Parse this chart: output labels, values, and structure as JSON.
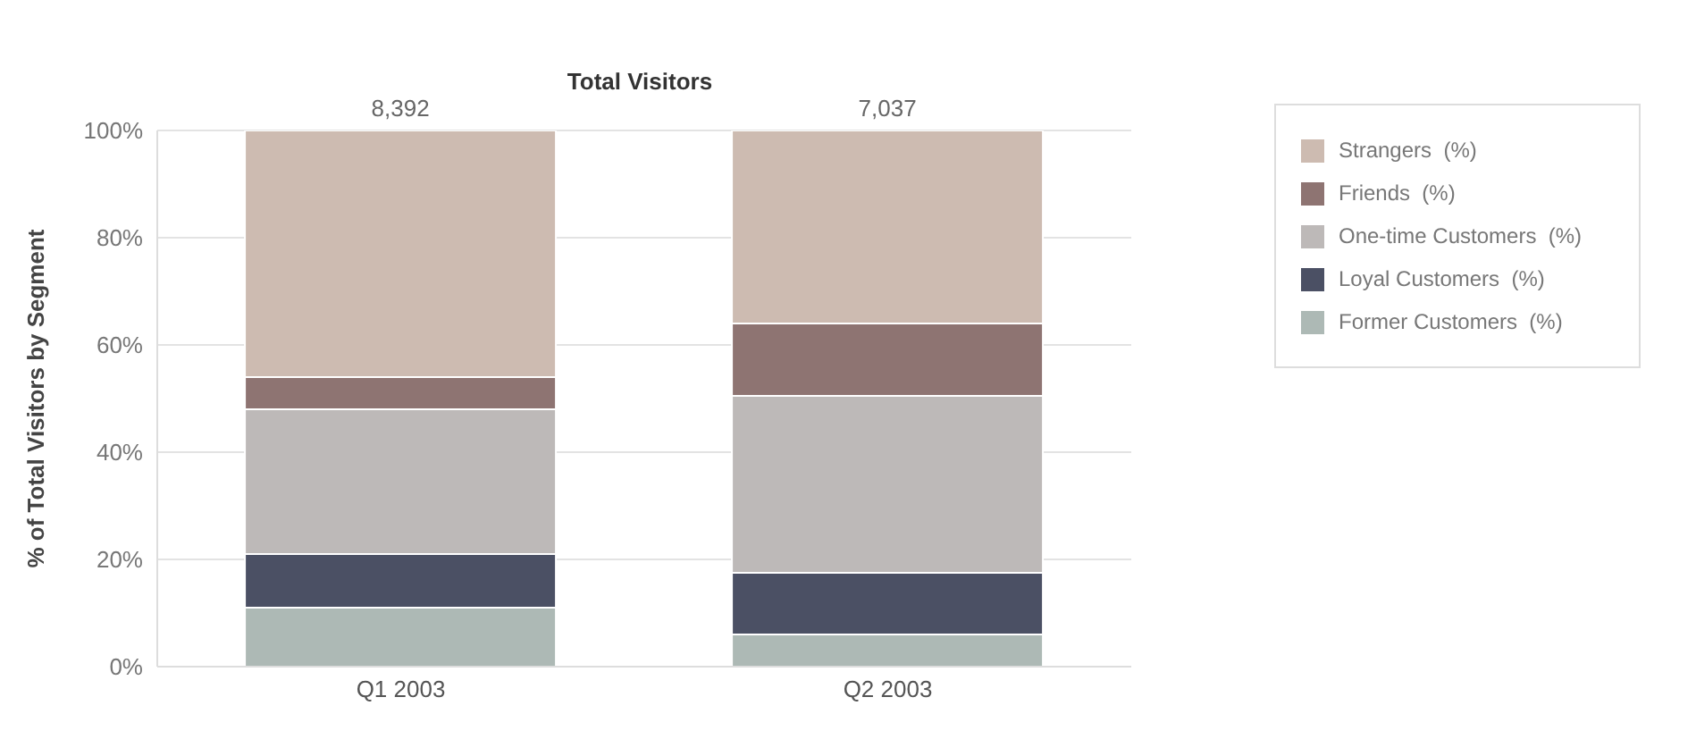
{
  "chart_data": {
    "type": "bar",
    "title": "Total Visitors",
    "ylabel": "% of Total Visitors by Segment",
    "categories": [
      "Q1 2003",
      "Q2 2003"
    ],
    "stacked": true,
    "series": [
      {
        "name": "Former Customers  (%)",
        "color": "#adb9b5",
        "values": [
          11,
          6
        ]
      },
      {
        "name": "Loyal Customers  (%)",
        "color": "#4b5064",
        "values": [
          10,
          11.5
        ]
      },
      {
        "name": "One-time Customers  (%)",
        "color": "#bdb9b8",
        "values": [
          27,
          33
        ]
      },
      {
        "name": "Friends  (%)",
        "color": "#8e7472",
        "values": [
          6,
          13.5
        ]
      },
      {
        "name": "Strangers  (%)",
        "color": "#cdbbb1",
        "values": [
          46,
          36
        ]
      }
    ],
    "annotations": [
      {
        "text": "8,392",
        "x": "Q1 2003",
        "y": 100
      },
      {
        "text": "7,037",
        "x": "Q2 2003",
        "y": 100
      }
    ],
    "ylim": [
      0,
      100
    ],
    "yticks": [
      {
        "value": 0,
        "label": "0%"
      },
      {
        "value": 20,
        "label": "20%"
      },
      {
        "value": 40,
        "label": "40%"
      },
      {
        "value": 60,
        "label": "60%"
      },
      {
        "value": 80,
        "label": "80%"
      },
      {
        "value": 100,
        "label": "100%"
      }
    ],
    "grid": "y",
    "legend": "right"
  }
}
